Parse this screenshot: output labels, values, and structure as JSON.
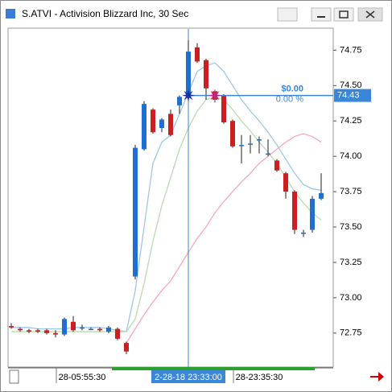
{
  "window": {
    "title": "S.ATVI - Activision Blizzard Inc, 30 Sec"
  },
  "chart_data": {
    "type": "candlestick",
    "categories": [
      null,
      null,
      null,
      null,
      null,
      null,
      null,
      null,
      "28-05:55:30",
      null,
      null,
      null,
      null,
      null,
      null,
      null,
      null,
      null,
      null,
      null,
      "2-28-18 23:33:00",
      null,
      null,
      null,
      null,
      null,
      null,
      null,
      "28-23:35:30",
      null,
      null,
      null,
      null,
      null,
      null,
      null
    ],
    "open": [
      72.8,
      72.78,
      72.77,
      72.77,
      72.77,
      72.75,
      72.74,
      72.83,
      72.79,
      72.78,
      72.78,
      72.76,
      72.78,
      72.68,
      73.15,
      74.05,
      74.33,
      74.2,
      74.3,
      74.36,
      74.44,
      74.77,
      74.68,
      74.46,
      74.43,
      74.25,
      74.08,
      74.09,
      74.12,
      74.02,
      73.97,
      73.88,
      73.75,
      73.46,
      73.48,
      73.7
    ],
    "high": [
      72.82,
      72.79,
      72.78,
      72.78,
      72.78,
      72.77,
      72.86,
      72.87,
      72.81,
      72.79,
      72.79,
      72.8,
      72.79,
      72.69,
      74.08,
      74.39,
      74.34,
      74.27,
      74.33,
      74.43,
      74.82,
      74.8,
      74.69,
      74.47,
      74.44,
      74.26,
      74.15,
      74.15,
      74.14,
      74.12,
      73.98,
      73.89,
      73.76,
      73.48,
      73.72,
      73.88
    ],
    "low": [
      72.78,
      72.76,
      72.75,
      72.75,
      72.74,
      72.72,
      72.73,
      72.76,
      72.77,
      72.77,
      72.76,
      72.75,
      72.7,
      72.6,
      73.13,
      74.04,
      74.16,
      74.17,
      74.14,
      74.3,
      74.42,
      74.66,
      74.4,
      74.38,
      74.23,
      74.06,
      73.95,
      74.02,
      74.02,
      74.0,
      73.89,
      73.7,
      73.45,
      73.43,
      73.46,
      73.69
    ],
    "close": [
      72.79,
      72.77,
      72.76,
      72.76,
      72.75,
      72.74,
      72.85,
      72.77,
      72.79,
      72.78,
      72.77,
      72.79,
      72.71,
      72.62,
      74.06,
      74.37,
      74.17,
      74.26,
      74.15,
      74.42,
      74.74,
      74.67,
      74.48,
      74.4,
      74.24,
      74.07,
      74.08,
      74.09,
      74.12,
      74.02,
      73.9,
      73.75,
      73.48,
      73.46,
      73.7,
      73.74
    ],
    "up_color": "#1f6fd1",
    "down_color": "#cc1f1f",
    "lines": [
      {
        "color": "#9cc8ea",
        "values": [
          72.79,
          72.79,
          72.79,
          72.78,
          72.78,
          72.78,
          72.78,
          72.79,
          72.79,
          72.79,
          72.79,
          72.78,
          72.77,
          72.76,
          73.05,
          73.5,
          73.95,
          74.1,
          74.15,
          74.3,
          74.45,
          74.6,
          74.64,
          74.66,
          74.6,
          74.5,
          74.4,
          74.32,
          74.25,
          74.17,
          74.08,
          73.98,
          73.88,
          73.8,
          73.77,
          73.76
        ]
      },
      {
        "color": "#b8dcb0",
        "values": [
          72.76,
          72.76,
          72.76,
          72.76,
          72.76,
          72.76,
          72.76,
          72.76,
          72.76,
          72.76,
          72.76,
          72.76,
          72.76,
          72.76,
          72.85,
          73.1,
          73.4,
          73.65,
          73.85,
          74.05,
          74.2,
          74.32,
          74.4,
          74.42,
          74.4,
          74.33,
          74.25,
          74.18,
          74.1,
          74.03,
          73.95,
          73.85,
          73.75,
          73.67,
          73.6,
          73.55
        ]
      },
      {
        "color": "#f2a8c4",
        "values": [
          null,
          null,
          null,
          null,
          null,
          null,
          null,
          null,
          null,
          null,
          null,
          null,
          null,
          72.68,
          72.78,
          72.88,
          72.97,
          73.05,
          73.12,
          73.22,
          73.32,
          73.42,
          73.5,
          73.6,
          73.68,
          73.75,
          73.82,
          73.88,
          73.95,
          74.0,
          74.05,
          74.1,
          74.14,
          74.16,
          74.14,
          74.1
        ]
      }
    ],
    "ylim": [
      72.51,
      74.9
    ],
    "yticks": [
      72.75,
      {
        "value": 73.0,
        "label": "73.00"
      },
      73.25,
      {
        "value": 73.5,
        "label": "73.50"
      },
      73.75,
      {
        "value": 74.0,
        "label": "74.00"
      },
      74.25,
      {
        "value": 74.5,
        "label": "74.50"
      },
      74.75
    ],
    "last_price": 74.43,
    "position_pnl": "$0.00",
    "position_pnl_pct": "0.00 %",
    "crosshair_index": 20
  }
}
